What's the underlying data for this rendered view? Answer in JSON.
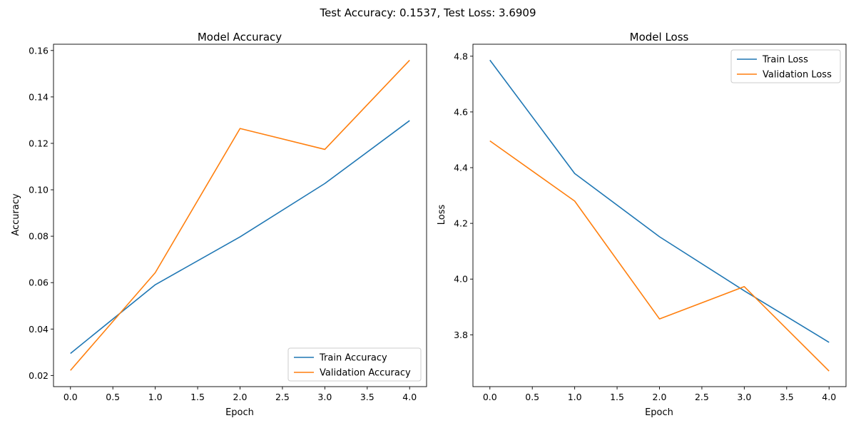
{
  "suptitle": "Test Accuracy: 0.1537, Test Loss: 3.6909",
  "chart_data": [
    {
      "type": "line",
      "title": "Model Accuracy",
      "xlabel": "Epoch",
      "ylabel": "Accuracy",
      "x": [
        0,
        1,
        2,
        3,
        4
      ],
      "xticks": [
        "0.0",
        "0.5",
        "1.0",
        "1.5",
        "2.0",
        "2.5",
        "3.0",
        "3.5",
        "4.0"
      ],
      "yticks": [
        "0.02",
        "0.04",
        "0.06",
        "0.08",
        "0.10",
        "0.12",
        "0.14",
        "0.16"
      ],
      "xlim": [
        -0.2,
        4.2
      ],
      "ylim": [
        0.0152,
        0.1627
      ],
      "grid": false,
      "legend": "lower right",
      "series": [
        {
          "name": "Train Accuracy",
          "color": "#1f77b4",
          "values": [
            0.0295,
            0.0591,
            0.0797,
            0.1027,
            0.1298
          ]
        },
        {
          "name": "Validation Accuracy",
          "color": "#ff7f0e",
          "values": [
            0.0222,
            0.0643,
            0.1264,
            0.1174,
            0.1558
          ]
        }
      ]
    },
    {
      "type": "line",
      "title": "Model Loss",
      "xlabel": "Epoch",
      "ylabel": "Loss",
      "x": [
        0,
        1,
        2,
        3,
        4
      ],
      "xticks": [
        "0.0",
        "0.5",
        "1.0",
        "1.5",
        "2.0",
        "2.5",
        "3.0",
        "3.5",
        "4.0"
      ],
      "yticks": [
        "3.8",
        "4.0",
        "4.2",
        "4.4",
        "4.6",
        "4.8"
      ],
      "xlim": [
        -0.2,
        4.2
      ],
      "ylim": [
        3.614,
        4.843
      ],
      "grid": false,
      "legend": "upper right",
      "series": [
        {
          "name": "Train Loss",
          "color": "#1f77b4",
          "values": [
            4.786,
            4.379,
            4.152,
            3.958,
            3.773
          ]
        },
        {
          "name": "Validation Loss",
          "color": "#ff7f0e",
          "values": [
            4.496,
            4.28,
            3.857,
            3.973,
            3.67
          ]
        }
      ]
    }
  ]
}
